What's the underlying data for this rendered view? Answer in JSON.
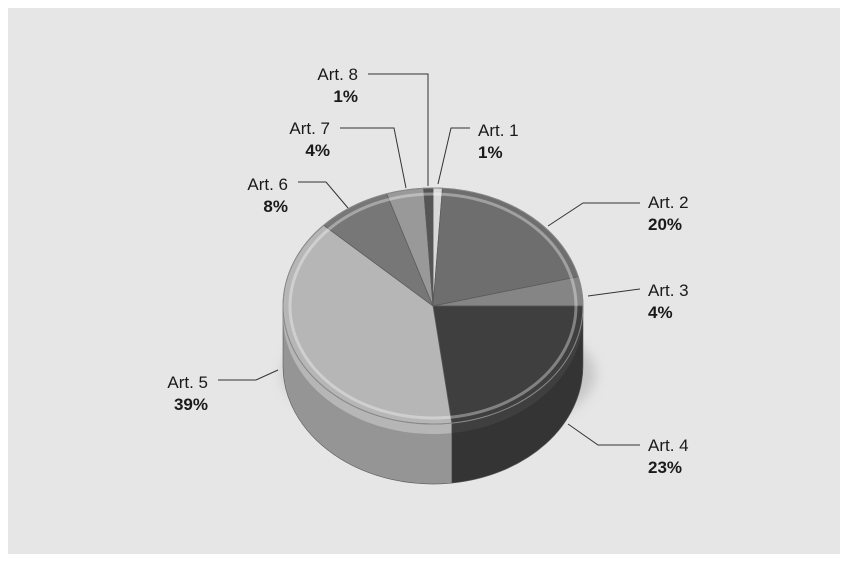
{
  "chart_data": {
    "type": "pie",
    "title": "",
    "categories": [
      "Art. 1",
      "Art. 2",
      "Art. 3",
      "Art. 4",
      "Art. 5",
      "Art. 6",
      "Art. 7",
      "Art. 8"
    ],
    "values": [
      1,
      20,
      4,
      23,
      39,
      8,
      4,
      1
    ],
    "value_labels": [
      "1%",
      "20%",
      "4%",
      "23%",
      "39%",
      "8%",
      "4%",
      "1%"
    ],
    "slice_colors": [
      "#d8d8d8",
      "#6e6e6e",
      "#858585",
      "#3f3f3f",
      "#b6b6b6",
      "#777777",
      "#999999",
      "#555555"
    ],
    "legend": "none",
    "style": "3d-exploded-cylinder"
  }
}
